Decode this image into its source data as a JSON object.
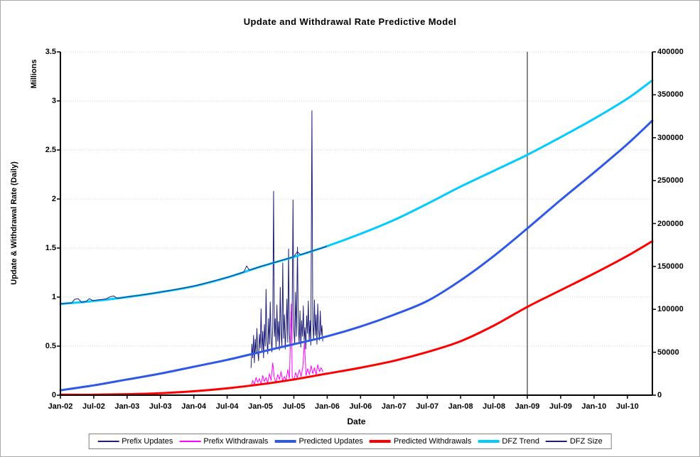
{
  "chart_data": {
    "type": "line",
    "title": "Update and Withdrawal Rate Predictive Model",
    "xlabel": "Date",
    "grid": "horizontal-dotted",
    "legend_position": "bottom",
    "left_axis": {
      "title": "Update & Withdrawal Rate (Daily)",
      "unit": "Millions",
      "min": 0,
      "max": 3.5,
      "tick_values": [
        0,
        0.5,
        1,
        1.5,
        2,
        2.5,
        3,
        3.5
      ],
      "tick_labels": [
        "0",
        "0.5",
        "1",
        "1.5",
        "2",
        "2.5",
        "3",
        "3.5"
      ]
    },
    "right_axis": {
      "min": 0,
      "max": 400000,
      "tick_values": [
        0,
        50000,
        100000,
        150000,
        200000,
        250000,
        300000,
        350000,
        400000
      ],
      "tick_labels": [
        "0",
        "50000",
        "100000",
        "150000",
        "200000",
        "250000",
        "300000",
        "350000",
        "400000"
      ]
    },
    "x_axis": {
      "range_months": [
        0,
        106.5
      ],
      "tick_months": [
        0,
        6,
        12,
        18,
        24,
        30,
        36,
        42,
        48,
        54,
        60,
        66,
        72,
        78,
        84,
        90,
        96,
        102
      ],
      "tick_labels": [
        "Jan-02",
        "Jul-02",
        "Jan-03",
        "Jul-03",
        "Jan-04",
        "Jul-04",
        "Jan-05",
        "Jul-05",
        "Jan-06",
        "Jul-06",
        "Jan-07",
        "Jul-07",
        "Jan-08",
        "Jul-08",
        "Jan-09",
        "Jul-09",
        "Jan-10",
        "Jul-10"
      ]
    },
    "marker_line": {
      "month": 84,
      "color": "#3a3a3a"
    },
    "series": [
      {
        "name": "Prefix Updates",
        "color": "#1f1f7a",
        "width": 1,
        "axis": "left",
        "style": "noisy",
        "points": [
          [
            34.3,
            0.28
          ],
          [
            34.45,
            0.52
          ],
          [
            34.6,
            0.38
          ],
          [
            34.75,
            0.61
          ],
          [
            34.9,
            0.33
          ],
          [
            35.05,
            0.57
          ],
          [
            35.2,
            0.42
          ],
          [
            35.35,
            0.68
          ],
          [
            35.5,
            0.45
          ],
          [
            35.65,
            0.35
          ],
          [
            35.8,
            0.62
          ],
          [
            35.95,
            0.48
          ],
          [
            36.1,
            0.88
          ],
          [
            36.25,
            0.45
          ],
          [
            36.4,
            0.65
          ],
          [
            36.55,
            0.38
          ],
          [
            36.7,
            0.72
          ],
          [
            36.85,
            0.5
          ],
          [
            37.0,
            1.08
          ],
          [
            37.15,
            0.55
          ],
          [
            37.3,
            0.42
          ],
          [
            37.45,
            0.78
          ],
          [
            37.6,
            0.52
          ],
          [
            37.75,
            0.95
          ],
          [
            37.9,
            0.58
          ],
          [
            38.05,
            0.44
          ],
          [
            38.2,
            0.7
          ],
          [
            38.35,
            2.08
          ],
          [
            38.5,
            0.6
          ],
          [
            38.65,
            0.78
          ],
          [
            38.8,
            0.48
          ],
          [
            38.95,
            0.92
          ],
          [
            39.1,
            0.55
          ],
          [
            39.25,
            0.75
          ],
          [
            39.4,
            0.46
          ],
          [
            39.55,
            1.1
          ],
          [
            39.7,
            0.62
          ],
          [
            39.85,
            0.5
          ],
          [
            40.0,
            1.35
          ],
          [
            40.15,
            0.58
          ],
          [
            40.3,
            0.82
          ],
          [
            40.45,
            0.47
          ],
          [
            40.6,
            0.68
          ],
          [
            40.75,
            0.98
          ],
          [
            40.9,
            0.54
          ],
          [
            41.05,
            1.49
          ],
          [
            41.2,
            0.62
          ],
          [
            41.35,
            0.48
          ],
          [
            41.5,
            0.85
          ],
          [
            41.65,
            0.56
          ],
          [
            41.85,
            1.99
          ],
          [
            42.0,
            0.66
          ],
          [
            42.15,
            0.52
          ],
          [
            42.3,
            1.05
          ],
          [
            42.45,
            0.6
          ],
          [
            42.65,
            1.51
          ],
          [
            42.8,
            0.7
          ],
          [
            42.95,
            0.53
          ],
          [
            43.1,
            0.86
          ],
          [
            43.25,
            0.49
          ],
          [
            43.4,
            0.76
          ],
          [
            43.55,
            0.6
          ],
          [
            43.7,
            0.91
          ],
          [
            43.85,
            0.56
          ],
          [
            44.0,
            0.69
          ],
          [
            44.15,
            0.47
          ],
          [
            44.3,
            0.81
          ],
          [
            44.45,
            0.63
          ],
          [
            44.6,
            0.96
          ],
          [
            44.75,
            0.55
          ],
          [
            44.9,
            0.76
          ],
          [
            45.05,
            0.51
          ],
          [
            45.25,
            2.9
          ],
          [
            45.4,
            0.73
          ],
          [
            45.55,
            0.56
          ],
          [
            45.7,
            0.97
          ],
          [
            45.85,
            0.61
          ],
          [
            46.0,
            0.82
          ],
          [
            46.15,
            0.52
          ],
          [
            46.3,
            0.93
          ],
          [
            46.45,
            0.66
          ],
          [
            46.6,
            0.56
          ],
          [
            46.75,
            0.86
          ],
          [
            46.9,
            0.61
          ],
          [
            47.05,
            0.71
          ],
          [
            47.2,
            0.55
          ]
        ]
      },
      {
        "name": "Prefix Withdrawals",
        "color": "#ff00ff",
        "width": 1,
        "axis": "left",
        "style": "noisy",
        "points": [
          [
            34.3,
            0.09
          ],
          [
            34.6,
            0.15
          ],
          [
            34.9,
            0.11
          ],
          [
            35.2,
            0.18
          ],
          [
            35.5,
            0.13
          ],
          [
            35.8,
            0.17
          ],
          [
            36.1,
            0.11
          ],
          [
            36.4,
            0.2
          ],
          [
            36.7,
            0.14
          ],
          [
            37.0,
            0.18
          ],
          [
            37.3,
            0.12
          ],
          [
            37.6,
            0.22
          ],
          [
            37.9,
            0.15
          ],
          [
            38.2,
            0.33
          ],
          [
            38.5,
            0.17
          ],
          [
            38.8,
            0.13
          ],
          [
            39.1,
            0.21
          ],
          [
            39.4,
            0.16
          ],
          [
            39.7,
            0.24
          ],
          [
            40.0,
            0.14
          ],
          [
            40.3,
            0.19
          ],
          [
            40.6,
            0.15
          ],
          [
            40.9,
            0.26
          ],
          [
            41.2,
            0.17
          ],
          [
            41.55,
            0.93
          ],
          [
            41.7,
            0.19
          ],
          [
            42.0,
            0.15
          ],
          [
            42.3,
            0.23
          ],
          [
            42.6,
            0.18
          ],
          [
            43.0,
            0.26
          ],
          [
            43.3,
            0.19
          ],
          [
            43.6,
            0.28
          ],
          [
            43.9,
            0.54
          ],
          [
            44.2,
            0.2
          ],
          [
            44.5,
            0.27
          ],
          [
            44.8,
            0.21
          ],
          [
            45.1,
            0.3
          ],
          [
            45.4,
            0.22
          ],
          [
            45.7,
            0.28
          ],
          [
            46.0,
            0.21
          ],
          [
            46.3,
            0.31
          ],
          [
            46.6,
            0.24
          ],
          [
            46.9,
            0.28
          ],
          [
            47.2,
            0.24
          ]
        ]
      },
      {
        "name": "Predicted Updates",
        "color": "#2e58e8",
        "width": 3,
        "axis": "left",
        "style": "smooth",
        "points": [
          [
            0,
            0.05
          ],
          [
            6,
            0.1
          ],
          [
            12,
            0.16
          ],
          [
            18,
            0.22
          ],
          [
            24,
            0.29
          ],
          [
            30,
            0.36
          ],
          [
            36,
            0.44
          ],
          [
            42,
            0.52
          ],
          [
            48,
            0.6
          ],
          [
            54,
            0.7
          ],
          [
            60,
            0.82
          ],
          [
            66,
            0.96
          ],
          [
            72,
            1.17
          ],
          [
            78,
            1.42
          ],
          [
            84,
            1.7
          ],
          [
            90,
            1.99
          ],
          [
            96,
            2.27
          ],
          [
            102,
            2.56
          ],
          [
            106.5,
            2.8
          ]
        ]
      },
      {
        "name": "Predicted Withdrawals",
        "color": "#ff0000",
        "width": 3,
        "axis": "left",
        "style": "smooth",
        "points": [
          [
            0,
            0.005
          ],
          [
            6,
            0.005
          ],
          [
            12,
            0.01
          ],
          [
            18,
            0.02
          ],
          [
            24,
            0.04
          ],
          [
            30,
            0.07
          ],
          [
            36,
            0.11
          ],
          [
            42,
            0.16
          ],
          [
            48,
            0.22
          ],
          [
            54,
            0.28
          ],
          [
            60,
            0.35
          ],
          [
            66,
            0.44
          ],
          [
            72,
            0.55
          ],
          [
            78,
            0.71
          ],
          [
            84,
            0.9
          ],
          [
            90,
            1.07
          ],
          [
            96,
            1.24
          ],
          [
            102,
            1.42
          ],
          [
            106.5,
            1.57
          ]
        ]
      },
      {
        "name": "DFZ Trend",
        "color": "#00ccff",
        "width": 3,
        "axis": "right",
        "style": "smooth",
        "points": [
          [
            0,
            106300
          ],
          [
            6,
            109700
          ],
          [
            12,
            114300
          ],
          [
            18,
            120000
          ],
          [
            24,
            126900
          ],
          [
            30,
            137100
          ],
          [
            36,
            149700
          ],
          [
            42,
            161100
          ],
          [
            48,
            173700
          ],
          [
            54,
            188000
          ],
          [
            60,
            204000
          ],
          [
            66,
            223000
          ],
          [
            72,
            243000
          ],
          [
            78,
            261500
          ],
          [
            84,
            280000
          ],
          [
            90,
            300600
          ],
          [
            96,
            322000
          ],
          [
            102,
            345500
          ],
          [
            106.5,
            366900
          ]
        ]
      },
      {
        "name": "DFZ Size",
        "color": "#1f1f7a",
        "width": 1,
        "axis": "right",
        "style": "noisy",
        "points": [
          [
            0,
            106500
          ],
          [
            1,
            106900
          ],
          [
            2,
            107400
          ],
          [
            2.6,
            111800
          ],
          [
            3.2,
            112300
          ],
          [
            3.8,
            108300
          ],
          [
            4.6,
            109000
          ],
          [
            5.2,
            112500
          ],
          [
            5.8,
            110300
          ],
          [
            6.6,
            110900
          ],
          [
            7.4,
            111500
          ],
          [
            8.2,
            112100
          ],
          [
            9,
            114800
          ],
          [
            9.6,
            115600
          ],
          [
            10.2,
            112900
          ],
          [
            11,
            113500
          ],
          [
            12,
            114600
          ],
          [
            13,
            115400
          ],
          [
            14,
            116200
          ],
          [
            15,
            117100
          ],
          [
            16,
            118100
          ],
          [
            17,
            119100
          ],
          [
            18,
            120200
          ],
          [
            19,
            121300
          ],
          [
            20,
            122400
          ],
          [
            21,
            123500
          ],
          [
            22,
            124700
          ],
          [
            23,
            125900
          ],
          [
            24,
            127100
          ],
          [
            25,
            128700
          ],
          [
            26,
            130400
          ],
          [
            27,
            132100
          ],
          [
            28,
            133800
          ],
          [
            29,
            135500
          ],
          [
            30,
            137300
          ],
          [
            31,
            139300
          ],
          [
            32,
            141400
          ],
          [
            33,
            143500
          ],
          [
            33.5,
            150600
          ],
          [
            34,
            145600
          ],
          [
            35,
            147700
          ],
          [
            36,
            149900
          ],
          [
            37,
            151800
          ],
          [
            38,
            153700
          ],
          [
            39,
            155600
          ],
          [
            40,
            157500
          ],
          [
            41,
            159400
          ],
          [
            42,
            161300
          ],
          [
            42.6,
            167200
          ],
          [
            43.2,
            163600
          ],
          [
            44,
            165300
          ],
          [
            45,
            167400
          ],
          [
            46,
            169400
          ],
          [
            47,
            171300
          ],
          [
            47.9,
            173300
          ]
        ]
      }
    ]
  }
}
